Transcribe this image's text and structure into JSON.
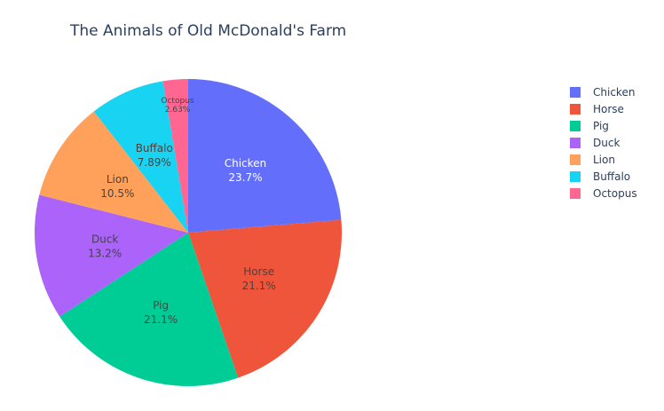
{
  "chart_data": {
    "type": "pie",
    "title": "The Animals of Old McDonald's Farm",
    "categories": [
      "Chicken",
      "Horse",
      "Pig",
      "Duck",
      "Lion",
      "Buffalo",
      "Octopus"
    ],
    "values": [
      9,
      8,
      8,
      5,
      4,
      3,
      1
    ],
    "percent_labels": [
      "23.7%",
      "21.1%",
      "21.1%",
      "13.2%",
      "10.5%",
      "7.89%",
      "2.63%"
    ],
    "colors": [
      "#636efa",
      "#EF553B",
      "#00cc96",
      "#ab63fa",
      "#FFA15A",
      "#19d3f3",
      "#FF6692"
    ],
    "direction": "clockwise",
    "start": "top",
    "legend": "right"
  }
}
